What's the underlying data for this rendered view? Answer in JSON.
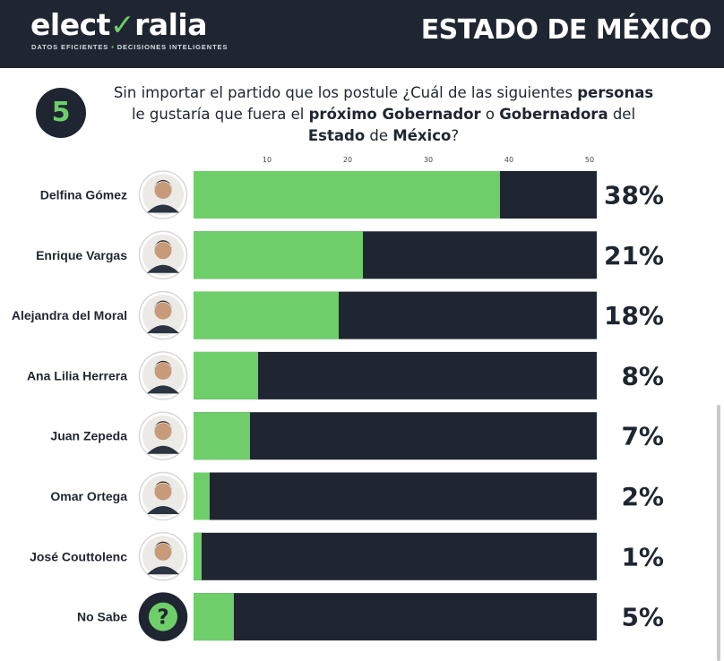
{
  "header": {
    "logo_pre": "elect",
    "logo_mark": "✓",
    "logo_post": "ralia",
    "tagline_left": "DATOS EFICIENTES",
    "tagline_sep": "•",
    "tagline_right": "DECISIONES INTELIGENTES",
    "region": "ESTADO DE MÉXICO"
  },
  "question": {
    "number": "5",
    "parts": [
      {
        "text": "Sin importar el partido que los postule ¿Cuál de las siguientes ",
        "bold": false
      },
      {
        "text": "personas",
        "bold": true
      },
      {
        "text": " le gustaría que fuera el ",
        "bold": false
      },
      {
        "text": "próximo Gobernador",
        "bold": true
      },
      {
        "text": " o ",
        "bold": false
      },
      {
        "text": "Gobernadora",
        "bold": true
      },
      {
        "text": " del ",
        "bold": false
      },
      {
        "text": "Estado",
        "bold": true
      },
      {
        "text": " de ",
        "bold": false
      },
      {
        "text": "México",
        "bold": true
      },
      {
        "text": "?",
        "bold": false
      }
    ]
  },
  "colors": {
    "bar_fill": "#6ecf6a",
    "bar_track": "#1f2631",
    "dark": "#1f2631"
  },
  "chart_data": {
    "type": "bar",
    "orientation": "horizontal",
    "categories": [
      "Delfina Gómez",
      "Enrique Vargas",
      "Alejandra del Moral",
      "Ana Lilia Herrera",
      "Juan Zepeda",
      "Omar Ortega",
      "José Couttolenc",
      "No Sabe"
    ],
    "values": [
      38,
      21,
      18,
      8,
      7,
      2,
      1,
      5
    ],
    "value_labels": [
      "38%",
      "21%",
      "18%",
      "8%",
      "7%",
      "2%",
      "1%",
      "5%"
    ],
    "xlim": [
      0,
      50
    ],
    "x_ticks": [
      10,
      20,
      30,
      40,
      50
    ],
    "track_max": 50,
    "avatar_icons": [
      "person-photo",
      "person-photo",
      "person-photo",
      "person-photo",
      "person-photo",
      "person-photo",
      "person-photo",
      "question-mark-icon"
    ],
    "title": "",
    "xlabel": "",
    "ylabel": ""
  }
}
